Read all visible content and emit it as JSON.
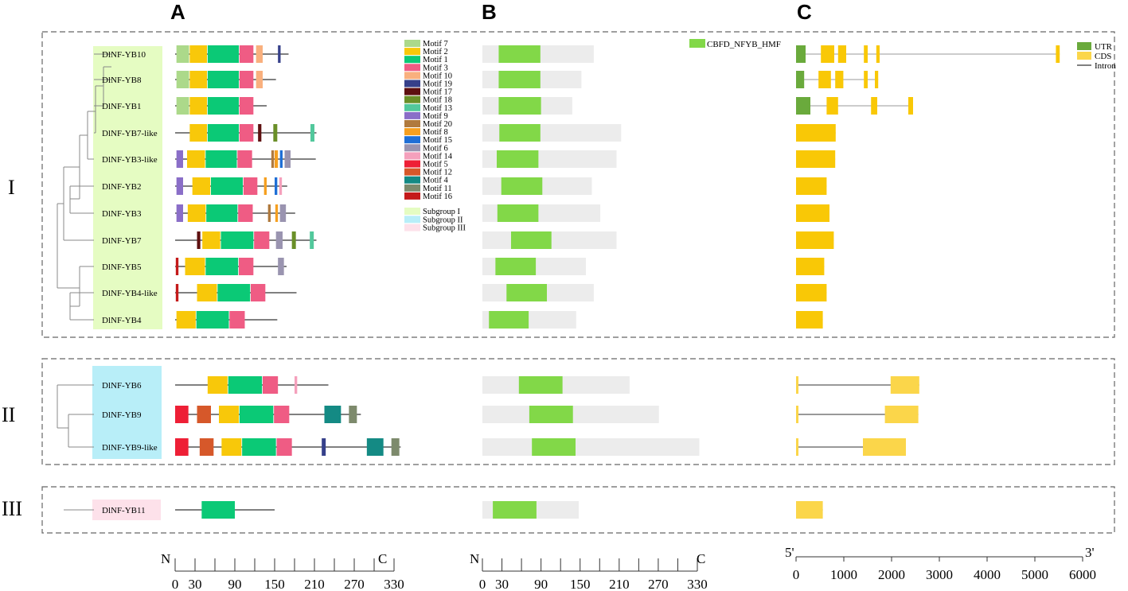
{
  "panel_labels": {
    "a": "A",
    "b": "B",
    "c": "C"
  },
  "groups": [
    "I",
    "II",
    "III"
  ],
  "colors": {
    "subgroup_I": "#e5fcc2",
    "subgroup_II": "#b8eef8",
    "subgroup_III": "#fde1ea",
    "domain": "#82d848",
    "domain_bg": "#ececec",
    "utr": "#6aaa3c",
    "cds_I": "#f9c806",
    "cds_II": "#fbd64a",
    "tree": "#888888"
  },
  "motif_legend": [
    {
      "name": "Motif 7",
      "color": "#acd98a"
    },
    {
      "name": "Motif 2",
      "color": "#f8c80a"
    },
    {
      "name": "Motif 1",
      "color": "#0bc976"
    },
    {
      "name": "Motif 3",
      "color": "#ef5c84"
    },
    {
      "name": "Motif 10",
      "color": "#f9b07e"
    },
    {
      "name": "Motif 19",
      "color": "#36408a"
    },
    {
      "name": "Motif 17",
      "color": "#5e1010"
    },
    {
      "name": "Motif 18",
      "color": "#6a8f28"
    },
    {
      "name": "Motif 13",
      "color": "#52c89c"
    },
    {
      "name": "Motif 9",
      "color": "#8a6ec8"
    },
    {
      "name": "Motif 20",
      "color": "#b07a3e"
    },
    {
      "name": "Motif 8",
      "color": "#f6a020"
    },
    {
      "name": "Motif 15",
      "color": "#1f6fd6"
    },
    {
      "name": "Motif 6",
      "color": "#9a94b0"
    },
    {
      "name": "Motif 14",
      "color": "#f5a0bc"
    },
    {
      "name": "Motif 5",
      "color": "#ee1f36"
    },
    {
      "name": "Motif 12",
      "color": "#d6582a"
    },
    {
      "name": "Motif 4",
      "color": "#148a84"
    },
    {
      "name": "Motif 11",
      "color": "#7d8a6c"
    },
    {
      "name": "Motif 16",
      "color": "#c41a1a"
    }
  ],
  "subgroup_legend": [
    {
      "name": "Subgroup I",
      "color": "#e5fcc2"
    },
    {
      "name": "Subgroup II",
      "color": "#b8eef8"
    },
    {
      "name": "Subgroup III",
      "color": "#fde1ea"
    }
  ],
  "domain_legend": "CBFD_NFYB_HMF",
  "gene_legend": [
    "UTR",
    "CDS",
    "Intron"
  ],
  "genes": [
    {
      "name": "DlNF-YB10",
      "group": 1,
      "length": 171,
      "motifs": [
        {
          "m": "Motif 7",
          "s": 2,
          "e": 21
        },
        {
          "m": "Motif 2",
          "s": 22,
          "e": 48
        },
        {
          "m": "Motif 1",
          "s": 49,
          "e": 96
        },
        {
          "m": "Motif 3",
          "s": 97,
          "e": 118
        },
        {
          "m": "Motif 10",
          "s": 122,
          "e": 132
        },
        {
          "m": "Motif 19",
          "s": 155,
          "e": 159
        }
      ],
      "domain": [
        25,
        89
      ],
      "prot_len": 171,
      "structure": {
        "utr": [
          [
            0,
            200
          ]
        ],
        "cds": [
          [
            520,
            800
          ],
          [
            880,
            1050
          ],
          [
            1420,
            1500
          ],
          [
            1680,
            1750
          ],
          [
            5440,
            5520
          ]
        ],
        "end": 5520
      }
    },
    {
      "name": "DlNF-YB8",
      "group": 1,
      "length": 152,
      "motifs": [
        {
          "m": "Motif 7",
          "s": 2,
          "e": 21
        },
        {
          "m": "Motif 2",
          "s": 22,
          "e": 48
        },
        {
          "m": "Motif 1",
          "s": 49,
          "e": 96
        },
        {
          "m": "Motif 3",
          "s": 97,
          "e": 118
        },
        {
          "m": "Motif 10",
          "s": 122,
          "e": 132
        }
      ],
      "domain": [
        25,
        89
      ],
      "prot_len": 152,
      "structure": {
        "utr": [
          [
            0,
            170
          ]
        ],
        "cds": [
          [
            470,
            730
          ],
          [
            820,
            990
          ],
          [
            1420,
            1500
          ],
          [
            1650,
            1720
          ]
        ],
        "end": 1720
      }
    },
    {
      "name": "DlNF-YB1",
      "group": 1,
      "length": 138,
      "motifs": [
        {
          "m": "Motif 7",
          "s": 2,
          "e": 21
        },
        {
          "m": "Motif 2",
          "s": 22,
          "e": 48
        },
        {
          "m": "Motif 1",
          "s": 49,
          "e": 96
        },
        {
          "m": "Motif 3",
          "s": 97,
          "e": 118
        }
      ],
      "domain": [
        25,
        90
      ],
      "prot_len": 138,
      "structure": {
        "utr": [
          [
            0,
            300
          ]
        ],
        "cds": [
          [
            640,
            880
          ],
          [
            1570,
            1700
          ],
          [
            2350,
            2450
          ]
        ],
        "end": 2450
      }
    },
    {
      "name": "DlNF-YB7-like",
      "group": 1,
      "length": 213,
      "motifs": [
        {
          "m": "Motif 2",
          "s": 22,
          "e": 48
        },
        {
          "m": "Motif 1",
          "s": 49,
          "e": 96
        },
        {
          "m": "Motif 3",
          "s": 97,
          "e": 118
        },
        {
          "m": "Motif 17",
          "s": 125,
          "e": 130
        },
        {
          "m": "Motif 18",
          "s": 148,
          "e": 154
        },
        {
          "m": "Motif 13",
          "s": 204,
          "e": 210
        }
      ],
      "domain": [
        26,
        89
      ],
      "prot_len": 213,
      "structure": {
        "utr": [],
        "cds": [
          [
            0,
            830
          ]
        ],
        "end": 830
      }
    },
    {
      "name": "DlNF-YB3-like",
      "group": 1,
      "length": 212,
      "motifs": [
        {
          "m": "Motif 9",
          "s": 2,
          "e": 12
        },
        {
          "m": "Motif 2",
          "s": 18,
          "e": 45
        },
        {
          "m": "Motif 1",
          "s": 46,
          "e": 93
        },
        {
          "m": "Motif 3",
          "s": 94,
          "e": 116
        },
        {
          "m": "Motif 20",
          "s": 145,
          "e": 149
        },
        {
          "m": "Motif 8",
          "s": 150,
          "e": 155
        },
        {
          "m": "Motif 15",
          "s": 158,
          "e": 162
        },
        {
          "m": "Motif 6",
          "s": 165,
          "e": 174
        }
      ],
      "domain": [
        22,
        86
      ],
      "prot_len": 206,
      "structure": {
        "utr": [],
        "cds": [
          [
            0,
            820
          ]
        ],
        "end": 820
      }
    },
    {
      "name": "DlNF-YB2",
      "group": 1,
      "length": 169,
      "motifs": [
        {
          "m": "Motif 9",
          "s": 2,
          "e": 12
        },
        {
          "m": "Motif 2",
          "s": 26,
          "e": 53
        },
        {
          "m": "Motif 1",
          "s": 54,
          "e": 102
        },
        {
          "m": "Motif 3",
          "s": 103,
          "e": 124
        },
        {
          "m": "Motif 8",
          "s": 134,
          "e": 138
        },
        {
          "m": "Motif 15",
          "s": 150,
          "e": 154
        },
        {
          "m": "Motif 14",
          "s": 157,
          "e": 161
        }
      ],
      "domain": [
        29,
        92
      ],
      "prot_len": 168,
      "structure": {
        "utr": [],
        "cds": [
          [
            0,
            640
          ]
        ],
        "end": 640
      }
    },
    {
      "name": "DlNF-YB3",
      "group": 1,
      "length": 181,
      "motifs": [
        {
          "m": "Motif 9",
          "s": 2,
          "e": 12
        },
        {
          "m": "Motif 2",
          "s": 19,
          "e": 46
        },
        {
          "m": "Motif 1",
          "s": 47,
          "e": 94
        },
        {
          "m": "Motif 3",
          "s": 95,
          "e": 117
        },
        {
          "m": "Motif 20",
          "s": 140,
          "e": 144
        },
        {
          "m": "Motif 8",
          "s": 151,
          "e": 155
        },
        {
          "m": "Motif 6",
          "s": 158,
          "e": 167
        }
      ],
      "domain": [
        23,
        86
      ],
      "prot_len": 181,
      "structure": {
        "utr": [],
        "cds": [
          [
            0,
            700
          ]
        ],
        "end": 700
      }
    },
    {
      "name": "DlNF-YB7",
      "group": 1,
      "length": 213,
      "motifs": [
        {
          "m": "Motif 17",
          "s": 33,
          "e": 38
        },
        {
          "m": "Motif 2",
          "s": 41,
          "e": 68
        },
        {
          "m": "Motif 1",
          "s": 69,
          "e": 118
        },
        {
          "m": "Motif 3",
          "s": 119,
          "e": 142
        },
        {
          "m": "Motif 6",
          "s": 152,
          "e": 162
        },
        {
          "m": "Motif 18",
          "s": 176,
          "e": 182
        },
        {
          "m": "Motif 13",
          "s": 203,
          "e": 209
        }
      ],
      "domain": [
        44,
        106
      ],
      "prot_len": 206,
      "structure": {
        "utr": [],
        "cds": [
          [
            0,
            790
          ]
        ],
        "end": 790
      }
    },
    {
      "name": "DlNF-YB5",
      "group": 1,
      "length": 168,
      "motifs": [
        {
          "m": "Motif 16",
          "s": 1,
          "e": 5
        },
        {
          "m": "Motif 2",
          "s": 15,
          "e": 45
        },
        {
          "m": "Motif 1",
          "s": 46,
          "e": 95
        },
        {
          "m": "Motif 3",
          "s": 96,
          "e": 118
        },
        {
          "m": "Motif 6",
          "s": 155,
          "e": 164
        }
      ],
      "domain": [
        20,
        82
      ],
      "prot_len": 159,
      "structure": {
        "utr": [],
        "cds": [
          [
            0,
            590
          ]
        ],
        "end": 590
      }
    },
    {
      "name": "DlNF-YB4-like",
      "group": 1,
      "length": 183,
      "motifs": [
        {
          "m": "Motif 16",
          "s": 1,
          "e": 5
        },
        {
          "m": "Motif 2",
          "s": 33,
          "e": 63
        },
        {
          "m": "Motif 1",
          "s": 64,
          "e": 113
        },
        {
          "m": "Motif 3",
          "s": 114,
          "e": 136
        }
      ],
      "domain": [
        37,
        99
      ],
      "prot_len": 171,
      "structure": {
        "utr": [],
        "cds": [
          [
            0,
            640
          ]
        ],
        "end": 640
      }
    },
    {
      "name": "DlNF-YB4",
      "group": 1,
      "length": 154,
      "motifs": [
        {
          "m": "Motif 2",
          "s": 2,
          "e": 31
        },
        {
          "m": "Motif 1",
          "s": 32,
          "e": 81
        },
        {
          "m": "Motif 3",
          "s": 82,
          "e": 105
        }
      ],
      "domain": [
        10,
        71
      ],
      "prot_len": 144,
      "structure": {
        "utr": [],
        "cds": [
          [
            0,
            560
          ]
        ],
        "end": 560
      }
    },
    {
      "name": "DlNF-YB6",
      "group": 2,
      "length": 231,
      "motifs": [
        {
          "m": "Motif 2",
          "s": 49,
          "e": 79
        },
        {
          "m": "Motif 1",
          "s": 80,
          "e": 131
        },
        {
          "m": "Motif 3",
          "s": 132,
          "e": 155
        },
        {
          "m": "Motif 14",
          "s": 180,
          "e": 184
        }
      ],
      "domain": [
        56,
        123
      ],
      "prot_len": 226,
      "structure": {
        "utr": [],
        "cds": [
          [
            0,
            40
          ],
          [
            1980,
            2580
          ]
        ],
        "end": 2580
      }
    },
    {
      "name": "DlNF-YB9",
      "group": 2,
      "length": 280,
      "motifs": [
        {
          "m": "Motif 5",
          "s": 0,
          "e": 20
        },
        {
          "m": "Motif 12",
          "s": 33,
          "e": 54
        },
        {
          "m": "Motif 2",
          "s": 66,
          "e": 96
        },
        {
          "m": "Motif 1",
          "s": 97,
          "e": 148
        },
        {
          "m": "Motif 3",
          "s": 149,
          "e": 172
        },
        {
          "m": "Motif 4",
          "s": 225,
          "e": 250
        },
        {
          "m": "Motif 11",
          "s": 262,
          "e": 274
        }
      ],
      "domain": [
        72,
        139
      ],
      "prot_len": 271,
      "structure": {
        "utr": [],
        "cds": [
          [
            0,
            40
          ],
          [
            1860,
            2560
          ]
        ],
        "end": 2560
      }
    },
    {
      "name": "DlNF-YB9-like",
      "group": 2,
      "length": 340,
      "motifs": [
        {
          "m": "Motif 5",
          "s": 0,
          "e": 20
        },
        {
          "m": "Motif 12",
          "s": 37,
          "e": 58
        },
        {
          "m": "Motif 2",
          "s": 70,
          "e": 100
        },
        {
          "m": "Motif 1",
          "s": 101,
          "e": 152
        },
        {
          "m": "Motif 3",
          "s": 153,
          "e": 176
        },
        {
          "m": "Motif 19",
          "s": 221,
          "e": 227
        },
        {
          "m": "Motif 4",
          "s": 289,
          "e": 314
        },
        {
          "m": "Motif 11",
          "s": 326,
          "e": 338
        }
      ],
      "domain": [
        76,
        143
      ],
      "prot_len": 333,
      "structure": {
        "utr": [],
        "cds": [
          [
            0,
            40
          ],
          [
            1400,
            2300
          ]
        ],
        "end": 2300
      }
    },
    {
      "name": "DlNF-YB11",
      "group": 3,
      "length": 150,
      "motifs": [
        {
          "m": "Motif 1",
          "s": 40,
          "e": 90
        }
      ],
      "domain": [
        16,
        83
      ],
      "prot_len": 148,
      "structure": {
        "utr": [],
        "cds": [
          [
            0,
            560
          ]
        ],
        "end": 560
      }
    }
  ],
  "axes": {
    "protein": {
      "n_label": "N",
      "c_label": "C",
      "ticks": [
        "0",
        "30",
        "90",
        "150",
        "210",
        "270",
        "330"
      ]
    },
    "domain_axis": {
      "n_label": "N",
      "c_label": "C",
      "ticks": [
        "0",
        "30",
        "90",
        "150",
        "210",
        "270",
        "330"
      ]
    },
    "gene": {
      "five_label": "5'",
      "three_label": "3'",
      "ticks": [
        "0",
        "1000",
        "2000",
        "3000",
        "4000",
        "5000",
        "6000"
      ]
    }
  }
}
